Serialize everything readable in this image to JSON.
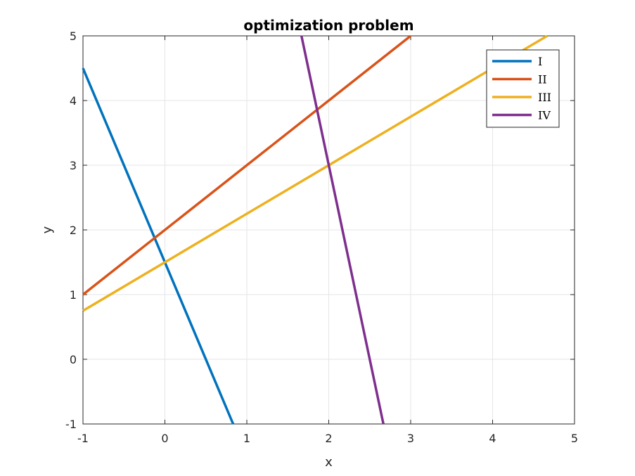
{
  "chart_data": {
    "type": "line",
    "title": "optimization problem",
    "xlabel": "x",
    "ylabel": "y",
    "xlim": [
      -1,
      5
    ],
    "ylim": [
      -1,
      5
    ],
    "xticks": [
      "-1",
      "0",
      "1",
      "2",
      "3",
      "4",
      "5"
    ],
    "yticks": [
      "-1",
      "0",
      "1",
      "2",
      "3",
      "4",
      "5"
    ],
    "grid": true,
    "legend_position": "top-right",
    "series": [
      {
        "name": "I",
        "color": "#0072BD",
        "x": [
          -1,
          0.833
        ],
        "y": [
          4.5,
          -1
        ]
      },
      {
        "name": "II",
        "color": "#D95319",
        "x": [
          -1,
          3
        ],
        "y": [
          1,
          5
        ]
      },
      {
        "name": "III",
        "color": "#EDB120",
        "x": [
          -1,
          4.667
        ],
        "y": [
          0.75,
          5
        ]
      },
      {
        "name": "IV",
        "color": "#7E2F8E",
        "x": [
          1.667,
          2.667
        ],
        "y": [
          5,
          -1
        ]
      }
    ]
  }
}
